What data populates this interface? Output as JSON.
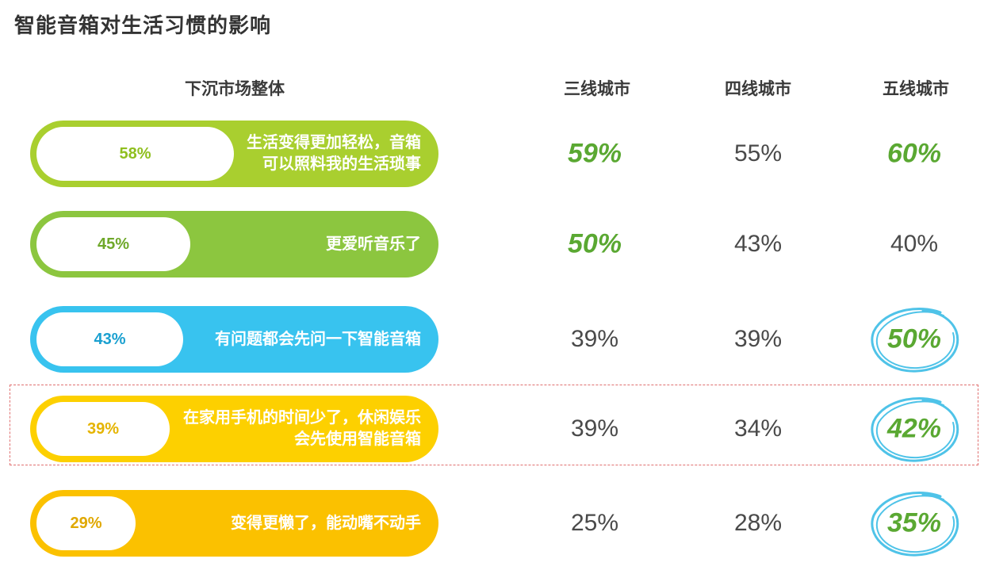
{
  "title": "智能音箱对生活习惯的影响",
  "chart_data": {
    "type": "table",
    "columns": [
      "下沉市场整体",
      "三线城市",
      "四线城市",
      "五线城市"
    ],
    "rows": [
      {
        "label": "生活变得更加轻松，音箱可以照料我的生活琐事",
        "overall": 58,
        "overall_text": "58%",
        "color": "#a9cf2f",
        "pct_color": "#8fbf1f",
        "cities": [
          {
            "text": "59%",
            "highlight": "bold"
          },
          {
            "text": "55%",
            "highlight": "none"
          },
          {
            "text": "60%",
            "highlight": "bold"
          }
        ]
      },
      {
        "label": "更爱听音乐了",
        "overall": 45,
        "overall_text": "45%",
        "color": "#8cc63f",
        "pct_color": "#6fa82a",
        "cities": [
          {
            "text": "50%",
            "highlight": "bold"
          },
          {
            "text": "43%",
            "highlight": "none"
          },
          {
            "text": "40%",
            "highlight": "none"
          }
        ]
      },
      {
        "label": "有问题都会先问一下智能音箱",
        "overall": 43,
        "overall_text": "43%",
        "color": "#38c3ef",
        "pct_color": "#1aa0d0",
        "cities": [
          {
            "text": "39%",
            "highlight": "none"
          },
          {
            "text": "39%",
            "highlight": "none"
          },
          {
            "text": "50%",
            "highlight": "circle"
          }
        ]
      },
      {
        "label": "在家用手机的时间少了，休闲娱乐会先使用智能音箱",
        "overall": 39,
        "overall_text": "39%",
        "color": "#fdd000",
        "pct_color": "#e5b400",
        "cities": [
          {
            "text": "39%",
            "highlight": "none"
          },
          {
            "text": "34%",
            "highlight": "none"
          },
          {
            "text": "42%",
            "highlight": "circle"
          }
        ]
      },
      {
        "label": "变得更懒了，能动嘴不动手",
        "overall": 29,
        "overall_text": "29%",
        "color": "#fbc100",
        "pct_color": "#e0a800",
        "cities": [
          {
            "text": "25%",
            "highlight": "none"
          },
          {
            "text": "28%",
            "highlight": "none"
          },
          {
            "text": "35%",
            "highlight": "circle"
          }
        ]
      }
    ],
    "colors": {
      "highlight_text": "#5aa832",
      "circle_stroke": "#4fc3e8",
      "dashed_box": "#e07070"
    }
  }
}
